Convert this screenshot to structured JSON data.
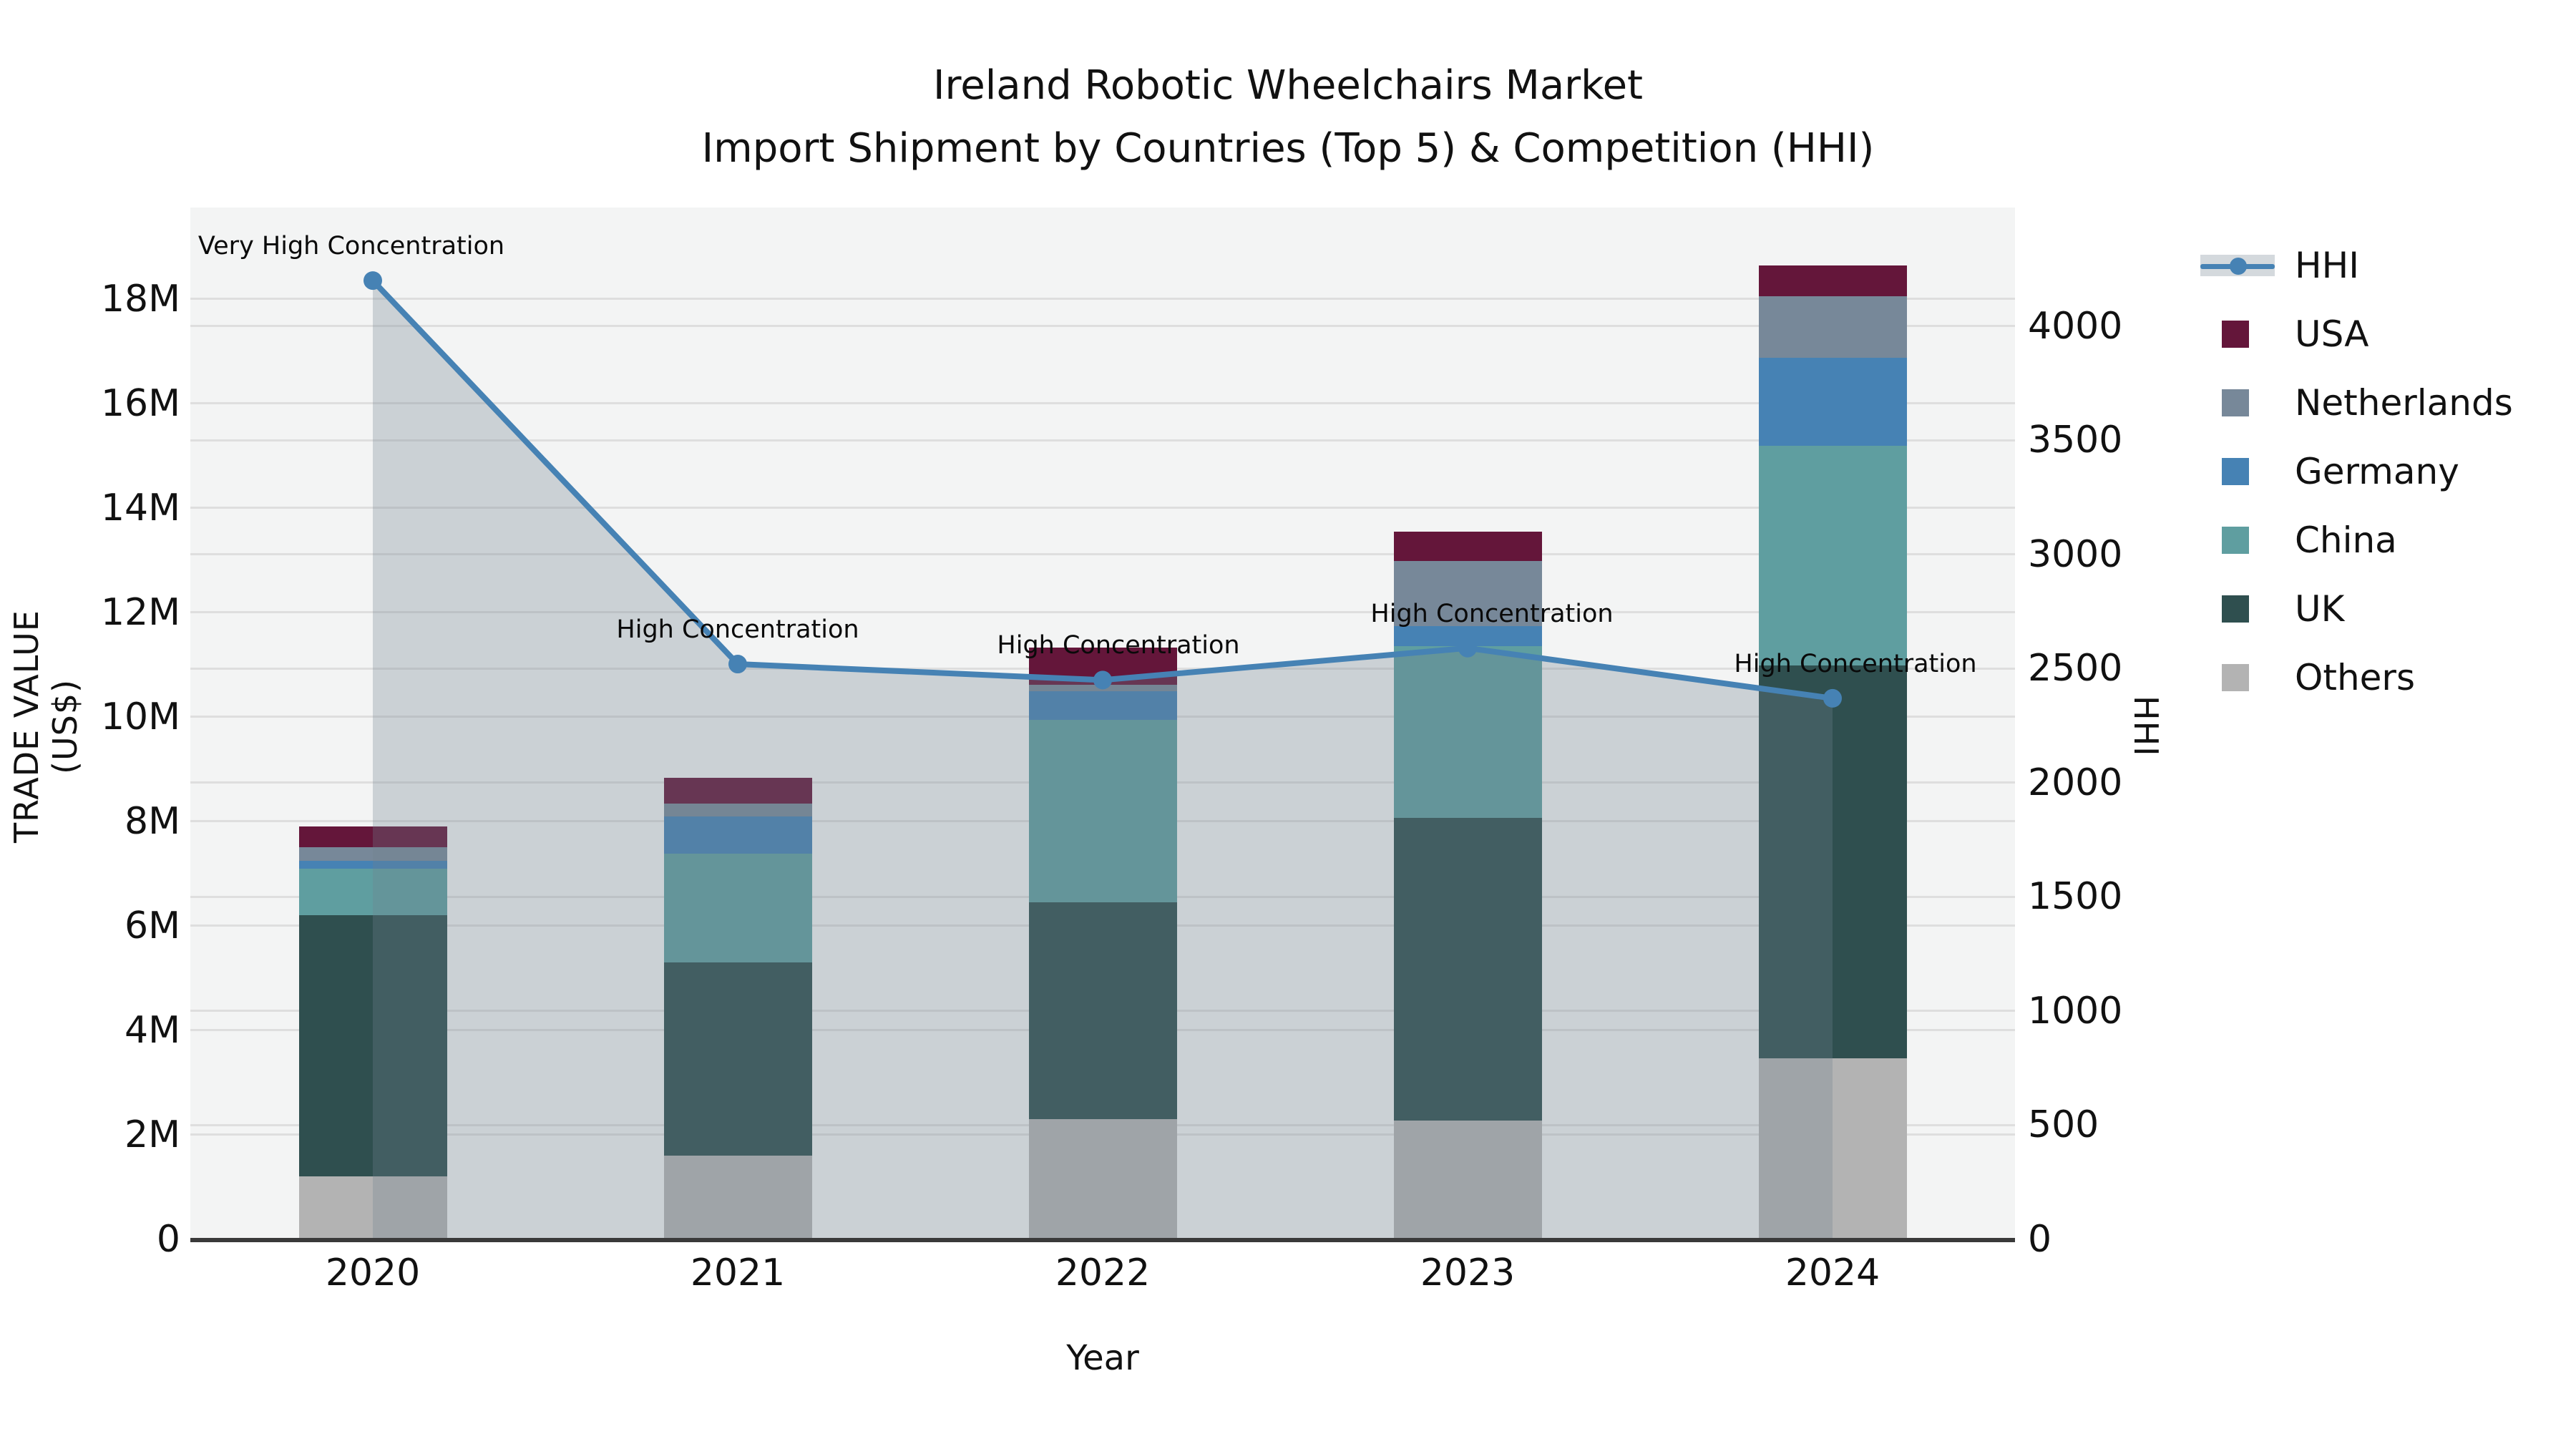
{
  "title_line1": "Ireland Robotic Wheelchairs Market",
  "title_line2": "Import Shipment by Countries (Top 5) & Competition (HHI)",
  "chart_data": {
    "type": "combo: stacked-bar + line-area",
    "categories": [
      "2020",
      "2021",
      "2022",
      "2023",
      "2024"
    ],
    "bar_unit": "US$ millions",
    "series": [
      {
        "name": "Others",
        "color": "#b3b3b3",
        "values": [
          1.2,
          1.6,
          2.3,
          2.27,
          3.47
        ]
      },
      {
        "name": "UK",
        "color": "#2f4f4f",
        "values": [
          5.0,
          3.7,
          4.15,
          5.8,
          7.52
        ]
      },
      {
        "name": "China",
        "color": "#5f9ea0",
        "values": [
          0.9,
          2.08,
          3.5,
          3.29,
          4.2
        ]
      },
      {
        "name": "Germany",
        "color": "#4682b4",
        "values": [
          0.15,
          0.72,
          0.54,
          0.38,
          1.69
        ]
      },
      {
        "name": "Netherlands",
        "color": "#778899",
        "values": [
          0.25,
          0.24,
          0.13,
          1.25,
          1.17
        ]
      },
      {
        "name": "USA",
        "color": "#64163a",
        "values": [
          0.4,
          0.5,
          0.7,
          0.56,
          0.59
        ]
      }
    ],
    "line": {
      "name": "HHI",
      "color": "#4682b4",
      "area_fill": "rgba(112,128,144,0.30)",
      "values": [
        4200,
        2520,
        2450,
        2590,
        2370
      ]
    },
    "annotations": [
      {
        "text": "Very High Concentration",
        "category": "2020",
        "dx": -30
      },
      {
        "text": "High Concentration",
        "category": "2021",
        "dx": 0
      },
      {
        "text": "High Concentration",
        "category": "2022",
        "dx": 22
      },
      {
        "text": "High Concentration",
        "category": "2023",
        "dx": 34
      },
      {
        "text": "High Concentration",
        "category": "2024",
        "dx": 32
      }
    ],
    "axes": {
      "x_label": "Year",
      "y_left_label": "TRADE VALUE (US$)",
      "y_right_label": "HHI",
      "y_left_ticks": [
        {
          "label": "0",
          "value": 0
        },
        {
          "label": "2M",
          "value": 2
        },
        {
          "label": "4M",
          "value": 4
        },
        {
          "label": "6M",
          "value": 6
        },
        {
          "label": "8M",
          "value": 8
        },
        {
          "label": "10M",
          "value": 10
        },
        {
          "label": "12M",
          "value": 12
        },
        {
          "label": "14M",
          "value": 14
        },
        {
          "label": "16M",
          "value": 16
        },
        {
          "label": "18M",
          "value": 18
        }
      ],
      "y_right_ticks": [
        {
          "label": "0",
          "value": 0
        },
        {
          "label": "500",
          "value": 500
        },
        {
          "label": "1000",
          "value": 1000
        },
        {
          "label": "1500",
          "value": 1500
        },
        {
          "label": "2000",
          "value": 2000
        },
        {
          "label": "2500",
          "value": 2500
        },
        {
          "label": "3000",
          "value": 3000
        },
        {
          "label": "3500",
          "value": 3500
        },
        {
          "label": "4000",
          "value": 4000
        }
      ],
      "y_left_max": 19.75,
      "y_right_max": 4520,
      "grid": true
    },
    "legend": [
      {
        "label": "HHI",
        "type": "line"
      },
      {
        "label": "USA",
        "type": "patch",
        "color": "#64163a"
      },
      {
        "label": "Netherlands",
        "type": "patch",
        "color": "#778899"
      },
      {
        "label": "Germany",
        "type": "patch",
        "color": "#4682b4"
      },
      {
        "label": "China",
        "type": "patch",
        "color": "#5f9ea0"
      },
      {
        "label": "UK",
        "type": "patch",
        "color": "#2f4f4f"
      },
      {
        "label": "Others",
        "type": "patch",
        "color": "#b3b3b3"
      }
    ]
  }
}
